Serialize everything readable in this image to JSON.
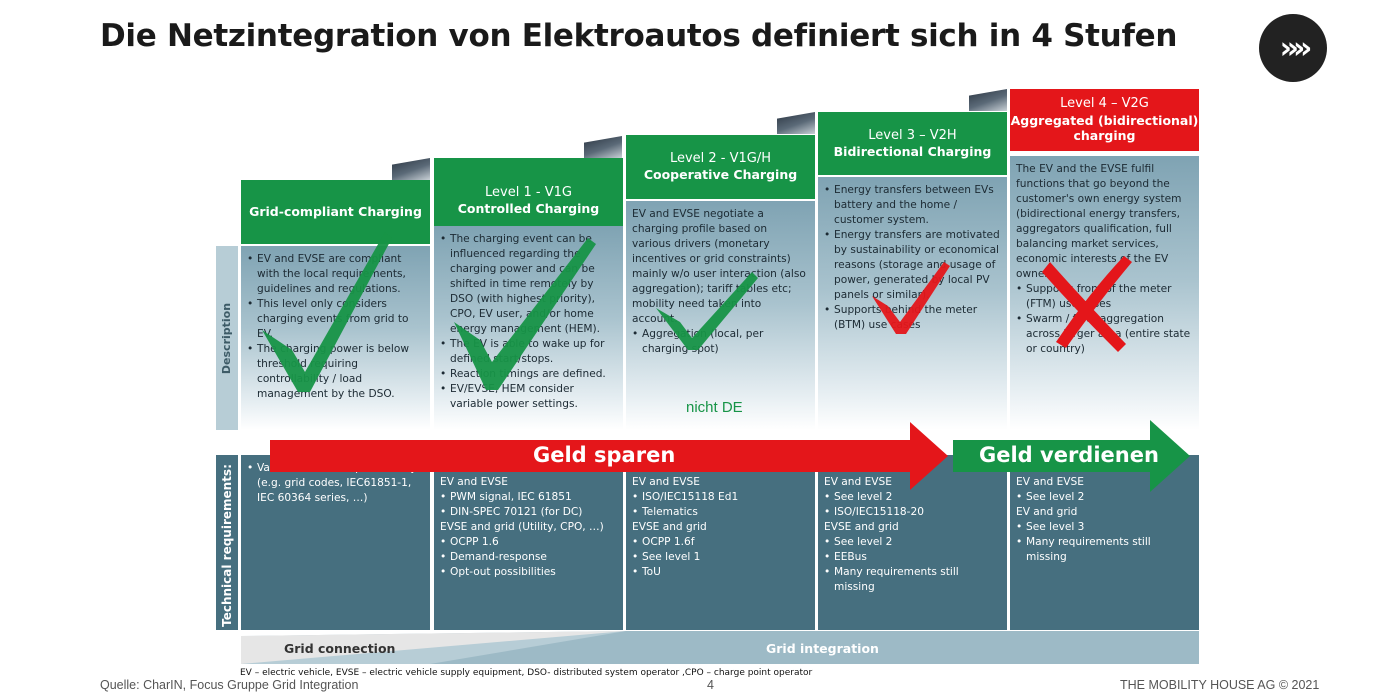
{
  "title": "Die Netzintegration von Elektroautos definiert sich in 4 Stufen",
  "logo_glyph": "»»",
  "row_labels": {
    "description": "Description",
    "technical": "Technical requirements:"
  },
  "levels": [
    {
      "level": "",
      "name": "Grid-compliant Charging",
      "color": "#179447",
      "description": [
        "EV and EVSE are compliant with the local requirements, guidelines and regulations.",
        "This level only considers charging events from grid to EV.",
        "The charging power is below threshold requiring controllability / load management by the DSO."
      ],
      "technical": [
        "Various standards per country (e.g. grid codes, IEC61851-1, IEC 60364 series, …)"
      ],
      "mark": "check"
    },
    {
      "level": "Level 1 - V1G",
      "name": "Controlled Charging",
      "color": "#179447",
      "description": [
        "The charging event can be influenced regarding the charging power and can be shifted in time remotely by DSO (with highest priority), CPO, EV user, and/or home energy management (HEM).",
        "The EV is able to wake up for defined start/stops.",
        "Reaction timings are defined.",
        "EV/EVSE, HEM consider variable power settings."
      ],
      "technical_groups": [
        {
          "head": "EV and EVSE",
          "items": [
            "PWM signal, IEC 61851",
            "DIN-SPEC 70121 (for DC)"
          ]
        },
        {
          "head": "EVSE and grid (Utility, CPO, …)",
          "items": [
            "OCPP 1.6",
            "Demand-response",
            "Opt-out possibilities"
          ]
        }
      ],
      "mark": "check"
    },
    {
      "level": "Level 2 - V1G/H",
      "name": "Cooperative Charging",
      "color": "#179447",
      "description_intro": "EV and EVSE negotiate a charging profile based on various drivers (monetary incentives or grid constraints) mainly w/o user interaction (also aggregation); tariff tables etc; mobility need taken into account.",
      "description": [
        "Aggregation (local, per charging spot)"
      ],
      "note": "nicht DE",
      "technical_groups": [
        {
          "head": "EV and EVSE",
          "items": [
            "ISO/IEC15118 Ed1",
            "Telematics"
          ]
        },
        {
          "head": "EVSE and grid",
          "items": [
            "OCPP 1.6f",
            "See level 1",
            "ToU"
          ]
        }
      ],
      "mark": "check"
    },
    {
      "level": "Level 3 – V2H",
      "name": "Bidirectional Charging",
      "color": "#179447",
      "description": [
        "Energy transfers between EVs battery and the home / customer system.",
        "Energy transfers are motivated by sustainability or economical reasons (storage and usage of power, generated by local PV panels or similar).",
        "Supports behind the meter (BTM) use cases"
      ],
      "technical_groups": [
        {
          "head": "EV and EVSE",
          "items": [
            "See level 2",
            "ISO/IEC15118-20"
          ]
        },
        {
          "head": "EVSE and grid",
          "items": [
            "See level 2",
            "EEBus",
            "Many requirements still missing"
          ]
        }
      ],
      "mark": "check"
    },
    {
      "level": "Level 4 – V2G",
      "name": "Aggregated (bidirectional) charging",
      "color": "#e4161a",
      "description_intro": "The EV and the EVSE fulfil functions that go beyond the customer's own energy system (bidirectional energy transfers, aggregators qualification, full balancing market services, economic interests of the EV owner).",
      "description": [
        "Supports front of the meter (FTM) use cases",
        "Swarm / fleet aggregation across larger area (entire state or country)"
      ],
      "technical_groups": [
        {
          "head": "EV and EVSE",
          "items": [
            "See level 2"
          ]
        },
        {
          "head": "EV and grid",
          "items": [
            "See level 3",
            "Many requirements still missing"
          ]
        }
      ],
      "mark": "cross"
    }
  ],
  "arrows": {
    "save": "Geld sparen",
    "earn": "Geld verdienen",
    "save_color": "#e4161a",
    "earn_color": "#179447"
  },
  "bottom": {
    "grid_connection": "Grid connection",
    "grid_integration": "Grid integration"
  },
  "footnote": "EV – electric vehicle, EVSE – electric vehicle supply equipment, DSO- distributed system operator ,CPO – charge point operator",
  "footer": {
    "source": "Quelle: CharIN, Focus Gruppe Grid Integration",
    "page": "4",
    "copyright": "THE MOBILITY HOUSE AG © 2021"
  }
}
